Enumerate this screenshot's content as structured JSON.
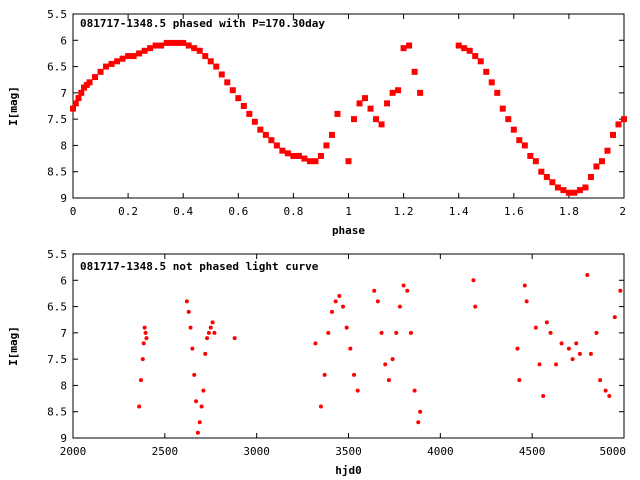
{
  "chart_data": [
    {
      "type": "scatter",
      "title": "081717-1348.5 phased with P=170.30day",
      "xlabel": "phase",
      "ylabel": "I[mag]",
      "xlim": [
        0,
        2
      ],
      "ylim": [
        5.5,
        9
      ],
      "y_inverted": true,
      "x_ticks": [
        "0",
        "0.2",
        "0.4",
        "0.6",
        "0.8",
        "1",
        "1.2",
        "1.4",
        "1.6",
        "1.8",
        "2"
      ],
      "y_ticks": [
        "5.5",
        "6",
        "6.5",
        "7",
        "7.5",
        "8",
        "8.5",
        "9"
      ],
      "marker_color": "#ff0000",
      "marker": "filled-square",
      "series": [
        {
          "x": [
            0.0,
            0.01,
            0.02,
            0.03,
            0.04,
            0.05,
            0.06,
            0.08,
            0.1,
            0.12,
            0.14,
            0.16,
            0.18,
            0.2,
            0.22,
            0.24,
            0.26,
            0.28,
            0.3,
            0.32,
            0.34,
            0.36,
            0.38,
            0.4,
            0.42,
            0.44,
            0.46,
            0.48,
            0.5,
            0.52,
            0.54,
            0.56,
            0.58,
            0.6,
            0.62,
            0.64,
            0.66,
            0.68,
            0.7,
            0.72,
            0.74,
            0.76,
            0.78,
            0.8,
            0.82,
            0.84,
            0.86,
            0.88,
            0.9,
            0.92,
            0.94,
            0.96,
            1.0,
            1.02,
            1.04,
            1.06,
            1.08,
            1.1,
            1.12,
            1.14,
            1.16,
            1.18,
            1.2,
            1.22,
            1.24,
            1.26,
            1.4,
            1.42,
            1.44,
            1.46,
            1.48,
            1.5,
            1.52,
            1.54,
            1.56,
            1.58,
            1.6,
            1.62,
            1.64,
            1.66,
            1.68,
            1.7,
            1.72,
            1.74,
            1.76,
            1.78,
            1.8,
            1.82,
            1.84,
            1.86,
            1.88,
            1.9,
            1.92,
            1.94,
            1.96,
            1.98,
            2.0
          ],
          "y": [
            7.3,
            7.2,
            7.1,
            7.0,
            6.9,
            6.85,
            6.8,
            6.7,
            6.6,
            6.5,
            6.45,
            6.4,
            6.35,
            6.3,
            6.3,
            6.25,
            6.2,
            6.15,
            6.1,
            6.1,
            6.05,
            6.05,
            6.05,
            6.05,
            6.1,
            6.15,
            6.2,
            6.3,
            6.4,
            6.5,
            6.65,
            6.8,
            6.95,
            7.1,
            7.25,
            7.4,
            7.55,
            7.7,
            7.8,
            7.9,
            8.0,
            8.1,
            8.15,
            8.2,
            8.2,
            8.25,
            8.3,
            8.3,
            8.2,
            8.0,
            7.8,
            7.4,
            8.3,
            7.5,
            7.2,
            7.1,
            7.3,
            7.5,
            7.6,
            7.2,
            7.0,
            6.95,
            6.15,
            6.1,
            6.6,
            7.0,
            6.1,
            6.15,
            6.2,
            6.3,
            6.4,
            6.6,
            6.8,
            7.0,
            7.3,
            7.5,
            7.7,
            7.9,
            8.0,
            8.2,
            8.3,
            8.5,
            8.6,
            8.7,
            8.8,
            8.85,
            8.9,
            8.9,
            8.85,
            8.8,
            8.6,
            8.4,
            8.3,
            8.1,
            7.8,
            7.6,
            7.5
          ]
        }
      ]
    },
    {
      "type": "scatter",
      "title": "081717-1348.5 not phased light curve",
      "xlabel": "hjd0",
      "ylabel": "I[mag]",
      "xlim": [
        2000,
        5000
      ],
      "ylim": [
        5.5,
        9
      ],
      "y_inverted": true,
      "x_ticks": [
        "2000",
        "2500",
        "3000",
        "3500",
        "4000",
        "4500",
        "5000"
      ],
      "y_ticks": [
        "5.5",
        "6",
        "6.5",
        "7",
        "7.5",
        "8",
        "8.5",
        "9"
      ],
      "marker_color": "#ff0000",
      "marker": "small-dot",
      "series": [
        {
          "x": [
            2360,
            2370,
            2380,
            2385,
            2390,
            2395,
            2400,
            2620,
            2630,
            2640,
            2650,
            2660,
            2670,
            2680,
            2690,
            2700,
            2710,
            2720,
            2730,
            2740,
            2750,
            2760,
            2770,
            2880,
            3320,
            3350,
            3370,
            3390,
            3410,
            3430,
            3450,
            3470,
            3490,
            3510,
            3530,
            3550,
            3640,
            3660,
            3680,
            3700,
            3720,
            3740,
            3760,
            3780,
            3800,
            3820,
            3840,
            3860,
            3880,
            3890,
            4180,
            4190,
            4420,
            4430,
            4460,
            4470,
            4520,
            4540,
            4560,
            4580,
            4600,
            4630,
            4660,
            4700,
            4720,
            4740,
            4760,
            4800,
            4820,
            4850,
            4870,
            4900,
            4920,
            4950,
            4980
          ],
          "y": [
            8.4,
            7.9,
            7.5,
            7.2,
            6.9,
            7.0,
            7.1,
            6.4,
            6.6,
            6.9,
            7.3,
            7.8,
            8.3,
            8.9,
            8.7,
            8.4,
            8.1,
            7.4,
            7.1,
            7.0,
            6.9,
            6.8,
            7.0,
            7.1,
            7.2,
            8.4,
            7.8,
            7.0,
            6.6,
            6.4,
            6.3,
            6.5,
            6.9,
            7.3,
            7.8,
            8.1,
            6.2,
            6.4,
            7.0,
            7.6,
            7.9,
            7.5,
            7.0,
            6.5,
            6.1,
            6.2,
            7.0,
            8.1,
            8.7,
            8.5,
            6.0,
            6.5,
            7.3,
            7.9,
            6.1,
            6.4,
            6.9,
            7.6,
            8.2,
            6.8,
            7.0,
            7.6,
            7.2,
            7.3,
            7.5,
            7.2,
            7.4,
            5.9,
            7.4,
            7.0,
            7.9,
            8.1,
            8.2,
            6.7,
            6.2
          ]
        }
      ]
    }
  ]
}
